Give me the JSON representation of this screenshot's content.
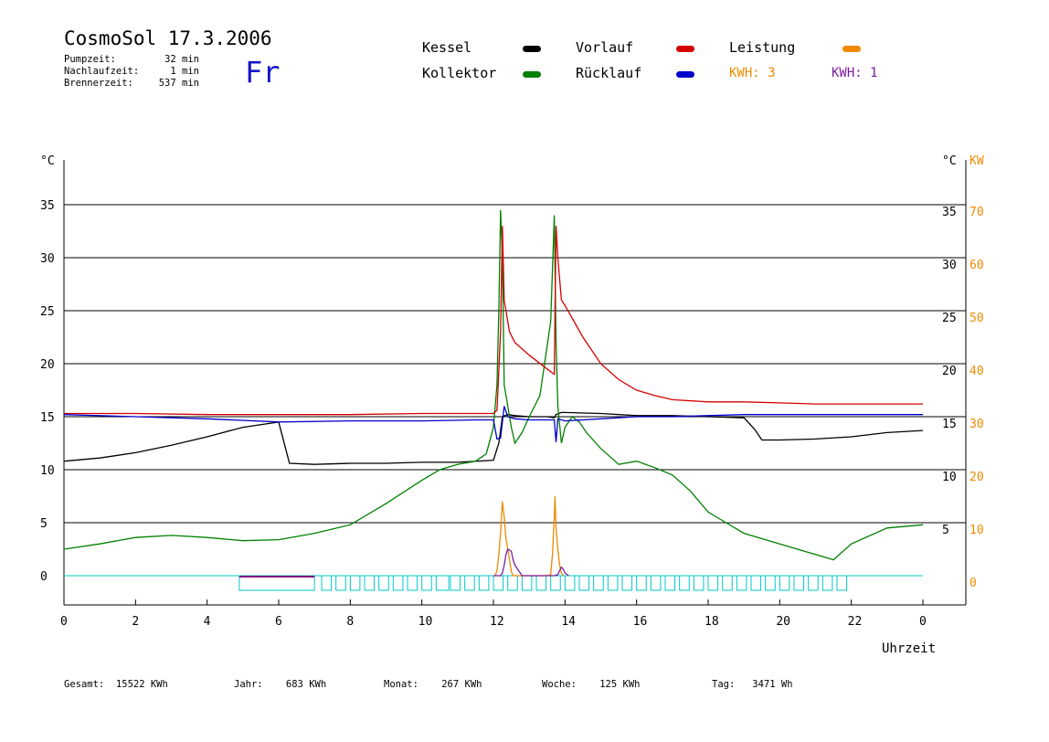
{
  "header": {
    "title": "CosmoSol 17.3.2006",
    "day": "Fr",
    "pumpzeit_label": "Pumpzeit:",
    "pumpzeit_value": "32 min",
    "nachlaufzeit_label": "Nachlaufzeit:",
    "nachlaufzeit_value": "1 min",
    "brennerzeit_label": "Brennerzeit:",
    "brennerzeit_value": "537 min"
  },
  "legend": {
    "kessel": "Kessel",
    "kollektor": "Kollektor",
    "vorlauf": "Vorlauf",
    "ruecklauf": "Rücklauf",
    "leistung": "Leistung",
    "kwh1_label": "KWH:",
    "kwh1_value": "3",
    "kwh2_label": "KWH:",
    "kwh2_value": "1"
  },
  "colors": {
    "kessel": "#000000",
    "kollektor": "#008000",
    "vorlauf": "#d40000",
    "ruecklauf": "#0000cc",
    "leistung": "#ee8a00",
    "leistung2": "#7a1fa0",
    "pump": "#00c8c8",
    "burner": "#800080"
  },
  "footer": {
    "gesamt_label": "Gesamt:",
    "gesamt_value": "15522 KWh",
    "jahr_label": "Jahr:",
    "jahr_value": "683 KWh",
    "monat_label": "Monat:",
    "monat_value": "267 KWh",
    "woche_label": "Woche:",
    "woche_value": "125 KWh",
    "tag_label": "Tag:",
    "tag_value": "3471 Wh"
  },
  "chart_data": {
    "type": "line",
    "xlabel": "Uhrzeit",
    "ylabel_left": "°C",
    "ylabel_right": "°C",
    "ylabel_right2": "KW",
    "xlim": [
      0,
      24
    ],
    "ylim": [
      0,
      35
    ],
    "ylim_right2": [
      0,
      70
    ],
    "x_ticks": [
      "0",
      "2",
      "4",
      "6",
      "8",
      "10",
      "12",
      "14",
      "16",
      "18",
      "20",
      "22",
      "0"
    ],
    "y_ticks": [
      "0",
      "5",
      "10",
      "15",
      "20",
      "25",
      "30",
      "35"
    ],
    "y_ticks_right": [
      "5",
      "10",
      "15",
      "20",
      "25",
      "30",
      "35"
    ],
    "y2_ticks": [
      "0",
      "10",
      "20",
      "30",
      "40",
      "50",
      "60",
      "70"
    ],
    "grid": "horizontal",
    "series": [
      {
        "name": "Kessel",
        "color": "#000000",
        "x": [
          0,
          1,
          2,
          3,
          4,
          5,
          6,
          6.1,
          6.3,
          7,
          8,
          9,
          10,
          11,
          12,
          12.15,
          12.25,
          12.4,
          12.6,
          13,
          13.5,
          13.7,
          13.75,
          13.9,
          14,
          15,
          16,
          17,
          18,
          19,
          19.3,
          19.5,
          20,
          21,
          22,
          23,
          24
        ],
        "y": [
          10.8,
          11.1,
          11.6,
          12.3,
          13.1,
          14,
          14.5,
          13.2,
          10.6,
          10.5,
          10.6,
          10.6,
          10.7,
          10.7,
          10.9,
          12.5,
          15,
          15.2,
          15.1,
          15,
          15,
          14.9,
          15.2,
          15.4,
          15.4,
          15.3,
          15.1,
          15.1,
          15,
          14.9,
          13.8,
          12.8,
          12.8,
          12.9,
          13.1,
          13.5,
          13.7
        ]
      },
      {
        "name": "Kollektor",
        "color": "#008000",
        "x": [
          0,
          1,
          2,
          3,
          4,
          5,
          6,
          7,
          8,
          9,
          10,
          10.5,
          11,
          11.5,
          11.8,
          12,
          12.1,
          12.15,
          12.2,
          12.25,
          12.3,
          12.4,
          12.5,
          12.6,
          12.8,
          13,
          13.3,
          13.6,
          13.7,
          13.75,
          13.8,
          13.9,
          14,
          14.2,
          14.4,
          14.6,
          15,
          15.5,
          16,
          16.5,
          17,
          17.5,
          18,
          18.5,
          19,
          20,
          21,
          21.5,
          22,
          23,
          24
        ],
        "y": [
          2.5,
          3,
          3.6,
          3.8,
          3.6,
          3.3,
          3.4,
          4,
          4.8,
          6.8,
          9,
          10,
          10.5,
          10.8,
          11.5,
          14,
          18,
          25,
          34.5,
          30,
          18,
          16,
          14,
          12.5,
          13.5,
          15,
          17,
          24,
          34,
          22,
          16,
          12.5,
          14,
          15,
          14.5,
          13.5,
          12,
          10.5,
          10.8,
          10.2,
          9.5,
          8,
          6,
          5,
          4,
          3,
          2,
          1.5,
          3,
          4.5,
          4.8
        ]
      },
      {
        "name": "Vorlauf",
        "color": "#d40000",
        "x": [
          0,
          2,
          4,
          6,
          8,
          10,
          11,
          12,
          12.1,
          12.2,
          12.25,
          12.3,
          12.35,
          12.45,
          12.6,
          13,
          13.5,
          13.7,
          13.75,
          13.8,
          13.9,
          14,
          14.5,
          15,
          15.5,
          16,
          16.5,
          17,
          18,
          19,
          20,
          21,
          22,
          23,
          24
        ],
        "y": [
          15.3,
          15.3,
          15.2,
          15.2,
          15.2,
          15.3,
          15.3,
          15.3,
          15.6,
          23,
          33,
          26,
          25,
          23,
          22,
          20.8,
          19.5,
          19,
          33,
          30,
          26,
          25.5,
          22.5,
          20,
          18.5,
          17.5,
          17,
          16.6,
          16.4,
          16.4,
          16.3,
          16.2,
          16.2,
          16.2,
          16.2
        ]
      },
      {
        "name": "Rücklauf",
        "color": "#0000cc",
        "x": [
          0,
          2,
          4,
          6,
          8,
          10,
          11.5,
          12,
          12.1,
          12.2,
          12.3,
          12.4,
          12.6,
          13,
          13.5,
          13.7,
          13.75,
          13.8,
          14,
          15,
          16,
          17,
          18,
          19,
          20,
          21,
          22,
          23,
          24
        ],
        "y": [
          15.2,
          15,
          14.8,
          14.5,
          14.6,
          14.6,
          14.7,
          14.7,
          12.9,
          13,
          16,
          15,
          14.8,
          14.7,
          14.7,
          14.7,
          12.6,
          14.8,
          14.6,
          14.8,
          15,
          15,
          15.1,
          15.2,
          15.2,
          15.2,
          15.2,
          15.2,
          15.2
        ]
      },
      {
        "name": "Leistung",
        "color": "#ee8a00",
        "x": [
          12,
          12.05,
          12.1,
          12.15,
          12.2,
          12.25,
          12.3,
          12.35,
          12.4,
          12.45,
          12.5,
          12.55,
          13.5,
          13.6,
          13.65,
          13.7,
          13.72,
          13.75,
          13.8,
          13.85,
          13.9,
          13.95
        ],
        "y": [
          0,
          0,
          1,
          4,
          8,
          14,
          11,
          7,
          5,
          3,
          0.8,
          0,
          0,
          0.2,
          4,
          11,
          15,
          9,
          5,
          2,
          0.5,
          0
        ]
      },
      {
        "name": "Leistung2",
        "color": "#7a1fa0",
        "x": [
          12,
          12.2,
          12.25,
          12.3,
          12.35,
          12.4,
          12.5,
          12.55,
          12.6,
          12.7,
          12.8,
          13.7,
          13.8,
          13.85,
          13.9,
          13.95,
          14,
          14.1
        ],
        "y": [
          0,
          0,
          0.5,
          2,
          4,
          5,
          4.6,
          3,
          2,
          1,
          0,
          0,
          0.2,
          1,
          1.6,
          1.2,
          0.5,
          0
        ]
      }
    ]
  }
}
